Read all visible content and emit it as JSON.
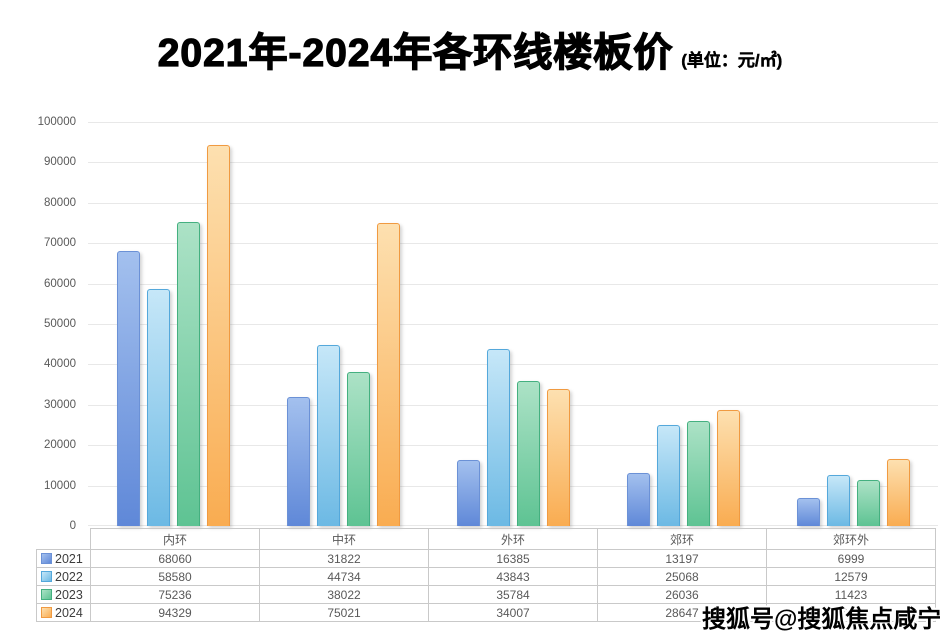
{
  "title": {
    "main": "2021年-2024年各环线楼板价",
    "unit": "(单位：元/㎡)"
  },
  "watermark": "搜狐号@搜狐焦点咸宁站",
  "chart_data": {
    "type": "bar",
    "title": "2021年-2024年各环线楼板价",
    "unit": "元/㎡",
    "xlabel": "",
    "ylabel": "",
    "ylim": [
      0,
      100000
    ],
    "ytick_interval": 10000,
    "grid": true,
    "legend_position": "table-left-column",
    "categories": [
      "内环",
      "中环",
      "外环",
      "郊环",
      "郊环外"
    ],
    "series": [
      {
        "name": "2021",
        "values": [
          68060,
          31822,
          16385,
          13197,
          6999
        ],
        "color_top": "#a3c0ee",
        "color_bottom": "#5f88d8",
        "border": "#6b91d6"
      },
      {
        "name": "2022",
        "values": [
          58580,
          44734,
          43843,
          25068,
          12579
        ],
        "color_top": "#c6e7f8",
        "color_bottom": "#6cb9e4",
        "border": "#54a8db"
      },
      {
        "name": "2023",
        "values": [
          75236,
          38022,
          35784,
          26036,
          11423
        ],
        "color_top": "#ace2c6",
        "color_bottom": "#5ec393",
        "border": "#44b080"
      },
      {
        "name": "2024",
        "values": [
          94329,
          75021,
          34007,
          28647,
          16553
        ],
        "color_top": "#fde0b0",
        "color_bottom": "#f9ac51",
        "border": "#f09a41"
      }
    ]
  },
  "colors": {
    "gridline": "#e8e8e8",
    "axis_text": "#595959",
    "table_border": "#c9c9c9",
    "table_text": "#595959",
    "title_text": "#000000",
    "watermark_text": "#000000"
  }
}
